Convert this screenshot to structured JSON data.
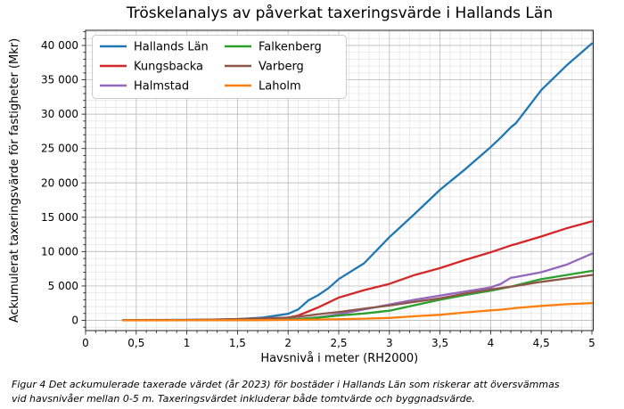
{
  "title": "Tröskelanalys av påverkat taxeringsvärde i Hallands Län",
  "axes": {
    "xlabel": "Havsnivå i meter (RH2000)",
    "ylabel": "Ackumulerat taxeringsvärde för fastigheter (Mkr)",
    "xtick_labels": [
      "0",
      "0,5",
      "1",
      "1,5",
      "2",
      "2,5",
      "3",
      "3,5",
      "4",
      "4,5",
      "5"
    ],
    "ytick_labels": [
      "0",
      "5 000",
      "10 000",
      "15 000",
      "20 000",
      "25 000",
      "30 000",
      "35 000",
      "40 000"
    ]
  },
  "caption": {
    "lines": [
      "Figur 4 Det ackumulerade taxerade värdet (år 2023) för bostäder i Hallands Län som riskerar att översvämmas",
      "vid havsnivåer mellan 0-5 m. Taxeringsvärdet inkluderar både tomtvärde och byggnadsvärde."
    ]
  },
  "chart_data": {
    "type": "line",
    "title": "Tröskelanalys av påverkat taxeringsvärde i Hallands Län",
    "xlabel": "Havsnivå i meter (RH2000)",
    "ylabel": "Ackumulerat taxeringsvärde för fastigheter (Mkr)",
    "xlim": [
      0,
      5.05
    ],
    "ylim": [
      -1500,
      42200
    ],
    "xticks": [
      0,
      0.5,
      1,
      1.5,
      2,
      2.5,
      3,
      3.5,
      4,
      4.5,
      5
    ],
    "yticks": [
      0,
      5000,
      10000,
      15000,
      20000,
      25000,
      30000,
      35000,
      40000
    ],
    "x_minor_step": 0.1,
    "y_minor_step": 1000,
    "grid": "major+minor",
    "legend_position": "upper-left",
    "legend_columns": 2,
    "x": [
      0.37,
      0.5,
      0.75,
      1.0,
      1.25,
      1.5,
      1.75,
      2.0,
      2.1,
      2.2,
      2.3,
      2.4,
      2.5,
      2.75,
      3.0,
      3.25,
      3.5,
      3.75,
      4.0,
      4.1,
      4.2,
      4.25,
      4.5,
      4.75,
      5.0
    ],
    "series": [
      {
        "name": "Hallands Län",
        "color": "#1f77b4",
        "values": [
          30,
          40,
          60,
          80,
          110,
          180,
          400,
          950,
          1600,
          2900,
          3700,
          4700,
          6000,
          8300,
          12100,
          15500,
          19000,
          22000,
          25200,
          26600,
          28100,
          28700,
          33500,
          37100,
          40300
        ]
      },
      {
        "name": "Kungsbacka",
        "color": "#d62728",
        "values": [
          30,
          30,
          35,
          40,
          60,
          80,
          170,
          400,
          700,
          1300,
          1900,
          2600,
          3300,
          4400,
          5300,
          6600,
          7600,
          8800,
          9900,
          10400,
          10900,
          11100,
          12200,
          13400,
          14400
        ]
      },
      {
        "name": "Halmstad",
        "color": "#9467bd",
        "values": [
          10,
          10,
          15,
          20,
          30,
          50,
          90,
          150,
          220,
          320,
          450,
          650,
          900,
          1600,
          2300,
          3000,
          3600,
          4200,
          4800,
          5300,
          6200,
          6300,
          7000,
          8100,
          9700
        ]
      },
      {
        "name": "Falkenberg",
        "color": "#2ca02c",
        "values": [
          10,
          10,
          15,
          20,
          30,
          40,
          60,
          100,
          180,
          280,
          400,
          550,
          700,
          1000,
          1400,
          2200,
          3000,
          3700,
          4300,
          4600,
          4900,
          5100,
          6000,
          6600,
          7200
        ]
      },
      {
        "name": "Varberg",
        "color": "#8c564b",
        "values": [
          20,
          25,
          35,
          50,
          100,
          200,
          280,
          400,
          550,
          700,
          900,
          1050,
          1200,
          1700,
          2150,
          2700,
          3200,
          3900,
          4500,
          4700,
          4900,
          5000,
          5600,
          6100,
          6600
        ]
      },
      {
        "name": "Laholm",
        "color": "#ff7f0e",
        "values": [
          0,
          0,
          5,
          10,
          20,
          30,
          40,
          60,
          80,
          100,
          120,
          140,
          150,
          250,
          350,
          600,
          800,
          1150,
          1450,
          1550,
          1700,
          1800,
          2100,
          2350,
          2500
        ]
      }
    ]
  },
  "style": {
    "grid_major_color": "#c0c0c0",
    "grid_minor_color": "#e6e6e6",
    "spine_color": "#262626",
    "legend_border_color": "#cccccc",
    "text_color": "#000000"
  }
}
